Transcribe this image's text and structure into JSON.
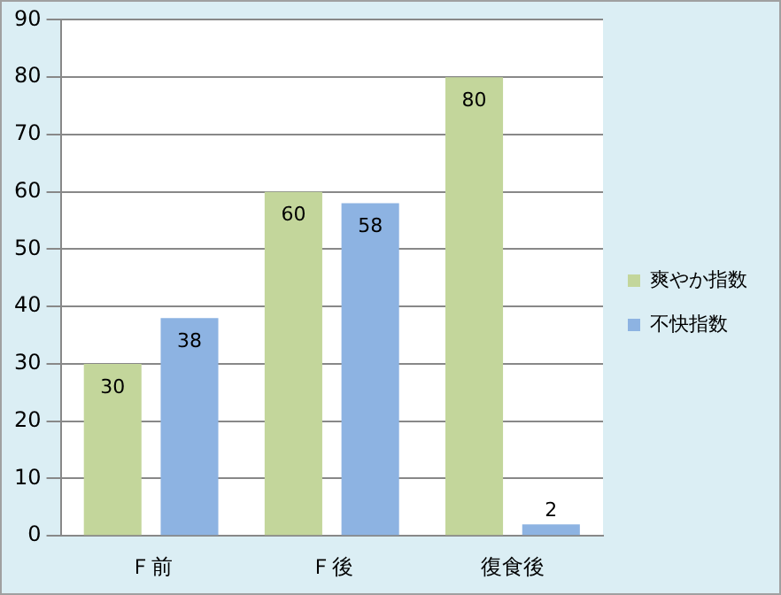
{
  "chart_data": {
    "type": "bar",
    "categories": [
      "Ｆ前",
      "Ｆ後",
      "復食後"
    ],
    "series": [
      {
        "name": "爽やか指数",
        "color": "#c3d69b",
        "values": [
          30,
          60,
          80
        ]
      },
      {
        "name": "不快指数",
        "color": "#8db3e2",
        "values": [
          38,
          58,
          2
        ]
      }
    ],
    "ylim": [
      0,
      90
    ],
    "yticks": [
      0,
      10,
      20,
      30,
      40,
      50,
      60,
      70,
      80,
      90
    ],
    "grid": "y",
    "legend": "right",
    "data_labels": true
  }
}
